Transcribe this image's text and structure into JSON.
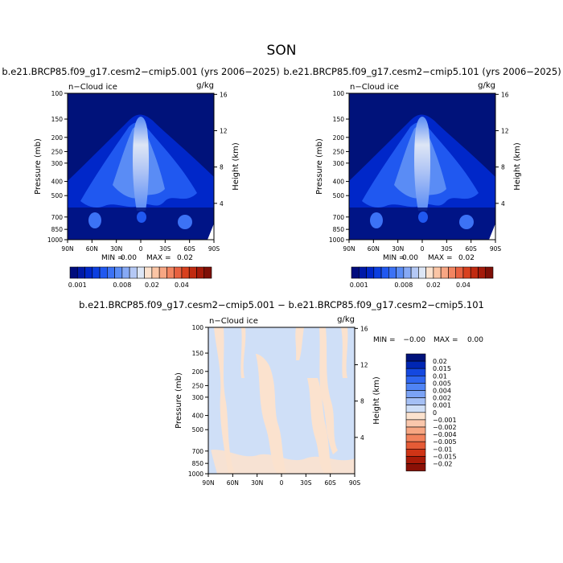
{
  "page_title": "SON",
  "colors": {
    "seq": [
      "#000c7d",
      "#0019a8",
      "#0027c9",
      "#0c3fe0",
      "#2058f0",
      "#3c72f5",
      "#5a8cf5",
      "#86a9f5",
      "#b4c8f5",
      "#dde6f5",
      "#fbe1cd",
      "#fbc5a5",
      "#f7a683",
      "#f28460",
      "#e86140",
      "#d8411f",
      "#c02a10",
      "#a41a0a",
      "#7e0f07"
    ],
    "diff": [
      "#00127a",
      "#0026b3",
      "#1448e0",
      "#2f66f0",
      "#4f84f5",
      "#7ba3f5",
      "#a5c0f5",
      "#cfdff7",
      "#fbe2ce",
      "#fac7ac",
      "#f7a682",
      "#f2825c",
      "#e55b36",
      "#cf3416",
      "#a81a08",
      "#8a1006"
    ]
  },
  "chart_data": [
    {
      "type": "heatmap",
      "title": "b.e21.BRCP85.f09_g17.cesm2−cmip5.001 (yrs 2006−2025)",
      "corner_label": "n−Cloud ice",
      "units": "g/kg",
      "xlabel": "",
      "ylabel": "Pressure (mb)",
      "ylabel_right": "Height (km)",
      "x_ticks": [
        "90N",
        "60N",
        "30N",
        "0",
        "30S",
        "60S",
        "90S"
      ],
      "y_ticks": [
        100,
        150,
        200,
        250,
        300,
        400,
        500,
        700,
        850,
        1000
      ],
      "y_ticks_right": [
        16,
        12,
        8,
        4
      ],
      "stats": {
        "min_label": "MIN =",
        "min_value": "0.00",
        "max_label": "MAX =",
        "max_value": "0.02"
      },
      "colorbar": {
        "levels": [
          0.001,
          0.002,
          0.003,
          0.004,
          0.005,
          0.006,
          0.008,
          0.01,
          0.012,
          0.015,
          0.02,
          0.025,
          0.03,
          0.035,
          0.04,
          0.045,
          0.05,
          0.06
        ],
        "shown_labels": [
          "0.001",
          "0.008",
          "0.02",
          "0.04"
        ]
      }
    },
    {
      "type": "heatmap",
      "title": "b.e21.BRCP85.f09_g17.cesm2−cmip5.101 (yrs 2006−2025)",
      "corner_label": "n−Cloud ice",
      "units": "g/kg",
      "xlabel": "",
      "ylabel": "Pressure (mb)",
      "ylabel_right": "Height (km)",
      "x_ticks": [
        "90N",
        "60N",
        "30N",
        "0",
        "30S",
        "60S",
        "90S"
      ],
      "y_ticks": [
        100,
        150,
        200,
        250,
        300,
        400,
        500,
        700,
        850,
        1000
      ],
      "y_ticks_right": [
        16,
        12,
        8,
        4
      ],
      "stats": {
        "min_label": "MIN =",
        "min_value": "0.00",
        "max_label": "MAX =",
        "max_value": "0.02"
      },
      "colorbar": {
        "levels": [
          0.001,
          0.002,
          0.003,
          0.004,
          0.005,
          0.006,
          0.008,
          0.01,
          0.012,
          0.015,
          0.02,
          0.025,
          0.03,
          0.035,
          0.04,
          0.045,
          0.05,
          0.06
        ],
        "shown_labels": [
          "0.001",
          "0.008",
          "0.02",
          "0.04"
        ]
      }
    },
    {
      "type": "heatmap",
      "title": "b.e21.BRCP85.f09_g17.cesm2−cmip5.001 − b.e21.BRCP85.f09_g17.cesm2−cmip5.101",
      "corner_label": "n−Cloud ice",
      "units": "g/kg",
      "xlabel": "",
      "ylabel": "Pressure (mb)",
      "ylabel_right": "Height (km)",
      "x_ticks": [
        "90N",
        "60N",
        "30N",
        "0",
        "30S",
        "60S",
        "90S"
      ],
      "y_ticks": [
        100,
        150,
        200,
        250,
        300,
        400,
        500,
        700,
        850,
        1000
      ],
      "y_ticks_right": [
        16,
        12,
        8,
        4
      ],
      "stats": {
        "min_label": "MIN =",
        "min_value": "−0.00",
        "max_label": "MAX =",
        "max_value": "0.00"
      },
      "colorbar": {
        "labels": [
          "0.02",
          "0.015",
          "0.01",
          "0.005",
          "0.004",
          "0.002",
          "0.001",
          "0",
          "−0.001",
          "−0.002",
          "−0.004",
          "−0.005",
          "−0.01",
          "−0.015",
          "−0.02"
        ]
      }
    }
  ]
}
